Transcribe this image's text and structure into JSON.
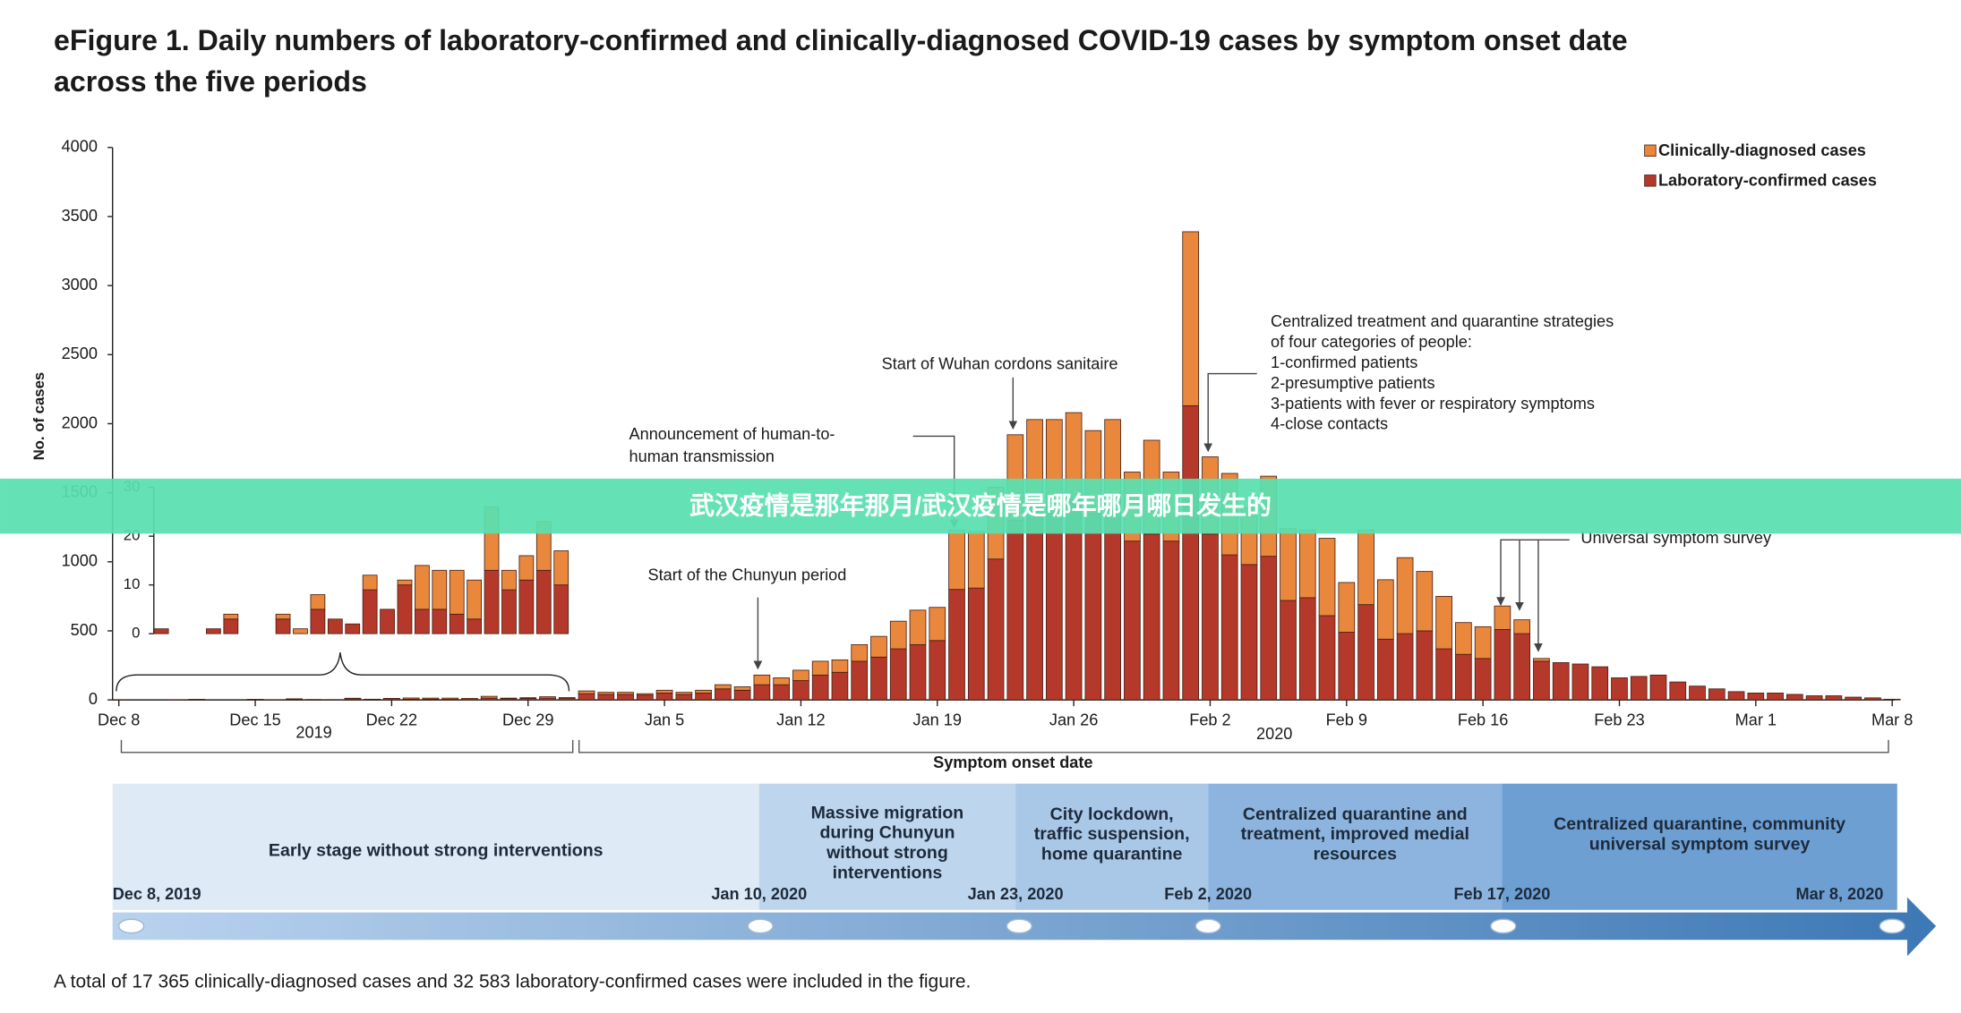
{
  "chart_data": {
    "type": "bar",
    "stacked": true,
    "title_lines": [
      "eFigure 1. Daily numbers of laboratory-confirmed and clinically-diagnosed COVID-19 cases by symptom onset date",
      "across the five periods"
    ],
    "y_label": "No. of cases",
    "x_label": "Symptom onset date",
    "year_labels": [
      "2019",
      "2020"
    ],
    "legend": "top-right",
    "categories": [
      "Dec 8",
      null,
      null,
      null,
      null,
      null,
      null,
      "Dec 15",
      null,
      null,
      null,
      null,
      null,
      null,
      "Dec 22",
      null,
      null,
      null,
      null,
      null,
      null,
      "Dec 29",
      null,
      null,
      null,
      null,
      null,
      null,
      "Jan 5",
      null,
      null,
      null,
      null,
      null,
      null,
      "Jan 12",
      null,
      null,
      null,
      null,
      null,
      null,
      "Jan 19",
      null,
      null,
      null,
      null,
      null,
      null,
      "Jan 26",
      null,
      null,
      null,
      null,
      null,
      null,
      "Feb 2",
      null,
      null,
      null,
      null,
      null,
      null,
      "Feb 9",
      null,
      null,
      null,
      null,
      null,
      null,
      "Feb 16",
      null,
      null,
      null,
      null,
      null,
      null,
      "Feb 23",
      null,
      null,
      null,
      null,
      null,
      null,
      "Mar 1",
      null,
      null,
      null,
      null,
      null,
      null,
      "Mar 8"
    ],
    "series": [
      {
        "name": "Laboratory-confirmed cases",
        "color": "#b5392a",
        "values": [
          1,
          0,
          0,
          1,
          3,
          0,
          0,
          3,
          0,
          5,
          3,
          2,
          9,
          5,
          10,
          5,
          5,
          4,
          3,
          13,
          9,
          11,
          13,
          10,
          45,
          40,
          40,
          35,
          50,
          40,
          50,
          80,
          70,
          110,
          110,
          140,
          180,
          200,
          280,
          310,
          370,
          400,
          430,
          800,
          810,
          1020,
          1300,
          1400,
          1400,
          1450,
          1350,
          1380,
          1150,
          1200,
          1150,
          2130,
          1200,
          1050,
          980,
          1040,
          720,
          740,
          610,
          490,
          690,
          440,
          480,
          500,
          370,
          330,
          300,
          510,
          480,
          280,
          270,
          260,
          240,
          160,
          170,
          180,
          130,
          100,
          80,
          60,
          50,
          50,
          40,
          30,
          30,
          20,
          15,
          5
        ]
      },
      {
        "name": "Clinically-diagnosed cases",
        "color": "#e9883d",
        "values": [
          0,
          0,
          0,
          0,
          1,
          0,
          0,
          1,
          1,
          3,
          0,
          0,
          3,
          0,
          1,
          9,
          8,
          9,
          8,
          13,
          4,
          5,
          10,
          7,
          20,
          15,
          15,
          10,
          20,
          15,
          20,
          30,
          25,
          70,
          50,
          75,
          100,
          90,
          120,
          150,
          200,
          250,
          240,
          430,
          410,
          520,
          620,
          630,
          630,
          630,
          600,
          650,
          500,
          680,
          500,
          1260,
          560,
          590,
          410,
          580,
          520,
          490,
          560,
          360,
          540,
          430,
          550,
          430,
          380,
          230,
          230,
          170,
          100,
          20,
          0,
          0,
          0,
          0,
          0,
          0,
          0,
          0,
          0,
          0,
          0,
          0,
          0,
          0,
          0,
          0,
          0,
          0
        ]
      }
    ],
    "ylim": [
      0,
      4000
    ],
    "yticks": [
      0,
      500,
      1000,
      1500,
      2000,
      2500,
      3000,
      3500,
      4000
    ],
    "inset": {
      "ylim": [
        0,
        30
      ],
      "yticks": [
        0,
        10,
        20,
        30
      ]
    },
    "annotations": [
      {
        "lines": [
          "Announcement  of human-to-",
          "human transmission"
        ]
      },
      {
        "lines": [
          "Start of the Chunyun period"
        ]
      },
      {
        "lines": [
          "Start of Wuhan cordons sanitaire"
        ]
      },
      {
        "lines": [
          "Centralized treatment and quarantine strategies",
          "of four categories of people:",
          "1-confirmed patients",
          "2-presumptive patients",
          "3-patients with fever or respiratory symptoms",
          "4-close contacts"
        ]
      },
      {
        "lines": [
          "Universal symptom survey"
        ]
      }
    ]
  },
  "timeline": {
    "stages": [
      {
        "lines": [
          "Early stage without strong interventions"
        ]
      },
      {
        "lines": [
          "Massive migration",
          "during Chunyun",
          "without strong",
          "interventions"
        ]
      },
      {
        "lines": [
          "City lockdown,",
          "traffic suspension,",
          "home quarantine"
        ]
      },
      {
        "lines": [
          "Centralized quarantine and",
          "treatment, improved medial",
          "resources"
        ]
      },
      {
        "lines": [
          "Centralized quarantine, community",
          "universal symptom survey"
        ]
      }
    ],
    "dates": [
      "Dec 8, 2019",
      "Jan 10, 2020",
      "Jan 23, 2020",
      "Feb 2, 2020",
      "Feb 17, 2020",
      "Mar 8, 2020"
    ]
  },
  "banner": {
    "text": "武汉疫情是那年那月/武汉疫情是哪年哪月哪日发生的"
  },
  "footnote": "A total of 17 365 clinically-diagnosed cases and 32 583 laboratory-confirmed cases were included in the figure."
}
